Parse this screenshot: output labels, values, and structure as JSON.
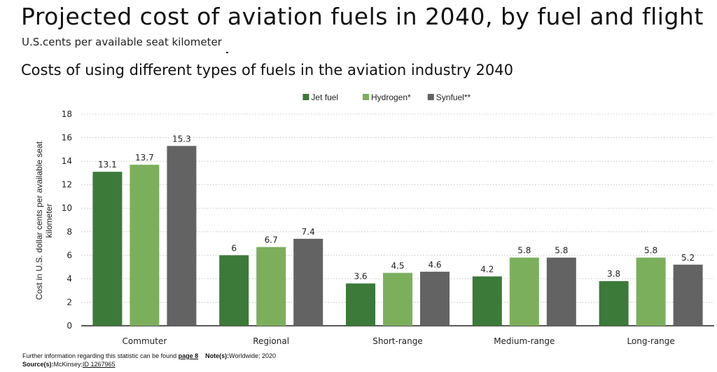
{
  "header": {
    "title": "Projected cost of aviation fuels in 2040, by fuel and flight",
    "subtitle": "U.S.cents per available seat kilometer",
    "chart_heading": "Costs of using different types of fuels in the aviation industry 2040"
  },
  "footer": {
    "info_prefix": "Further information regarding this statistic can be found ",
    "info_link": "page 8",
    "note_label": "Note(s):",
    "note_value": "Worldwide; 2020",
    "source_label": "Source(s):",
    "source_value": "McKinsey;",
    "source_id": "ID 1267965"
  },
  "chart_data": {
    "type": "bar",
    "categories": [
      "Commuter",
      "Regional",
      "Short-range",
      "Medium-range",
      "Long-range"
    ],
    "series": [
      {
        "name": "Jet fuel",
        "color": "#3b7a38",
        "values": [
          13.1,
          6,
          3.6,
          4.2,
          3.8
        ]
      },
      {
        "name": "Hydrogen*",
        "color": "#7caf5c",
        "values": [
          13.7,
          6.7,
          4.5,
          5.8,
          5.8
        ]
      },
      {
        "name": "Synfuel**",
        "color": "#636363",
        "values": [
          15.3,
          7.4,
          4.6,
          5.8,
          5.2
        ]
      }
    ],
    "ylabel": "Cost in U.S. dollar cents per available seat kilometer",
    "ylim": [
      0,
      18
    ],
    "yticks": [
      0,
      2,
      4,
      6,
      8,
      10,
      12,
      14,
      16,
      18
    ],
    "grid": true,
    "legend": "top-center"
  }
}
